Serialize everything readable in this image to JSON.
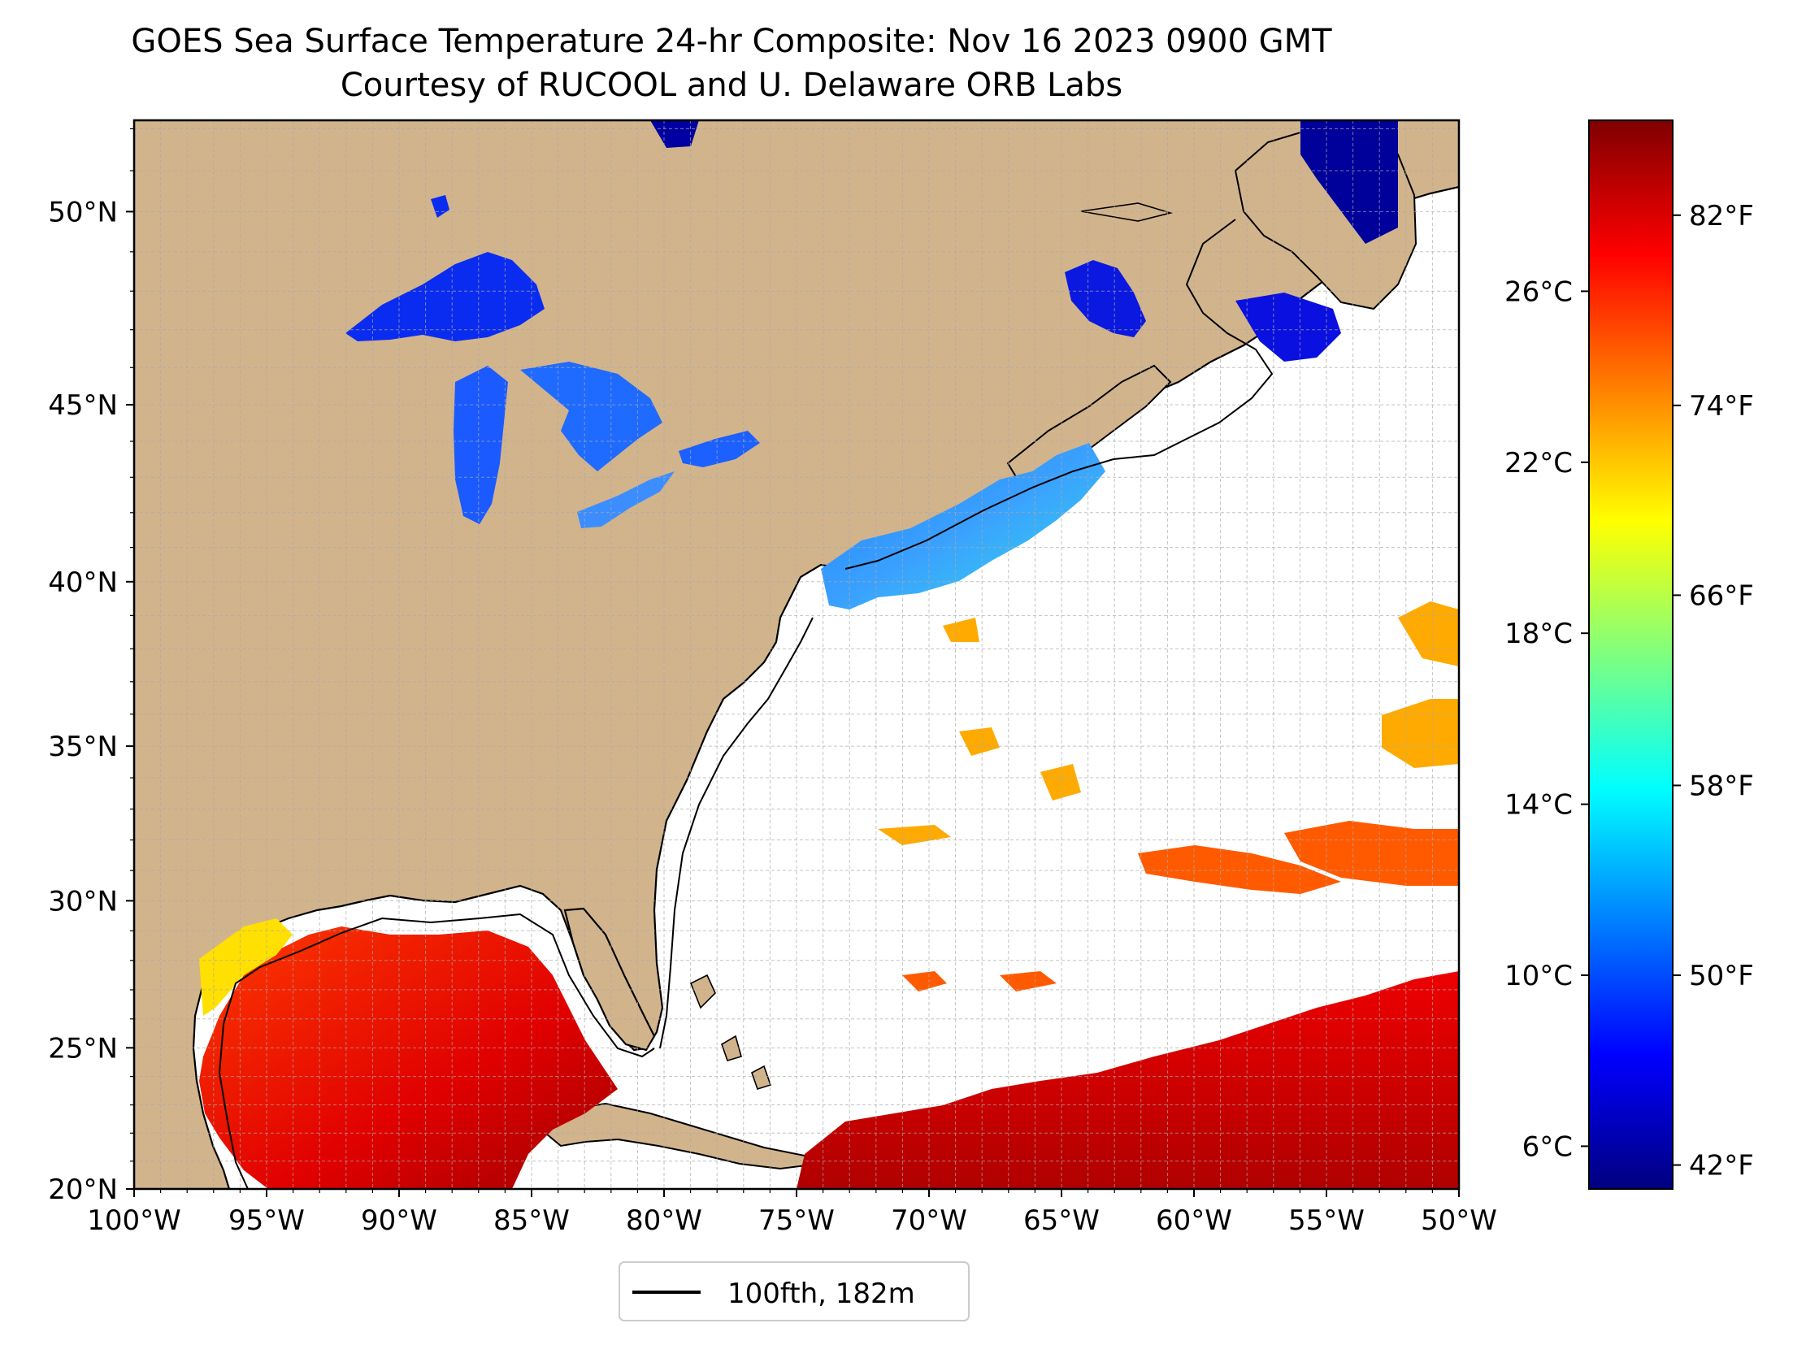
{
  "title": {
    "line1": "GOES Sea Surface Temperature 24-hr Composite: Nov 16 2023 0900 GMT",
    "line2": "Courtesy of RUCOOL and U. Delaware ORB Labs"
  },
  "map": {
    "lon_range": [
      -100,
      -50
    ],
    "lat_range": [
      20,
      52.2
    ],
    "x_ticks": [
      {
        "lon": -100,
        "label": "100°W"
      },
      {
        "lon": -95,
        "label": "95°W"
      },
      {
        "lon": -90,
        "label": "90°W"
      },
      {
        "lon": -85,
        "label": "85°W"
      },
      {
        "lon": -80,
        "label": "80°W"
      },
      {
        "lon": -75,
        "label": "75°W"
      },
      {
        "lon": -70,
        "label": "70°W"
      },
      {
        "lon": -65,
        "label": "65°W"
      },
      {
        "lon": -60,
        "label": "60°W"
      },
      {
        "lon": -55,
        "label": "55°W"
      },
      {
        "lon": -50,
        "label": "50°W"
      }
    ],
    "y_ticks": [
      {
        "lat": 20,
        "label": "20°N"
      },
      {
        "lat": 25,
        "label": "25°N"
      },
      {
        "lat": 30,
        "label": "30°N"
      },
      {
        "lat": 35,
        "label": "35°N"
      },
      {
        "lat": 40,
        "label": "40°N"
      },
      {
        "lat": 45,
        "label": "45°N"
      },
      {
        "lat": 50,
        "label": "50°N"
      }
    ],
    "grid": true,
    "land_color": "#d2b48c",
    "lake_color": "#9ab8e8"
  },
  "legend": {
    "label": "100fth, 182m",
    "placement": "below map"
  },
  "colorbar": {
    "colormap": "jet",
    "range_c": [
      5,
      30
    ],
    "celsius_ticks": [
      {
        "value": 6,
        "label": "6°C"
      },
      {
        "value": 10,
        "label": "10°C"
      },
      {
        "value": 14,
        "label": "14°C"
      },
      {
        "value": 18,
        "label": "18°C"
      },
      {
        "value": 22,
        "label": "22°C"
      },
      {
        "value": 26,
        "label": "26°C"
      }
    ],
    "fahrenheit_ticks": [
      {
        "value_c": 5.56,
        "label": "42°F"
      },
      {
        "value_c": 10,
        "label": "50°F"
      },
      {
        "value_c": 14.44,
        "label": "58°F"
      },
      {
        "value_c": 18.89,
        "label": "66°F"
      },
      {
        "value_c": 23.33,
        "label": "74°F"
      },
      {
        "value_c": 27.78,
        "label": "82°F"
      }
    ],
    "stops": [
      "#00007f",
      "#0000ff",
      "#007fff",
      "#00ffff",
      "#7fff7f",
      "#ffff00",
      "#ff7f00",
      "#ff0000",
      "#7f0000"
    ]
  }
}
